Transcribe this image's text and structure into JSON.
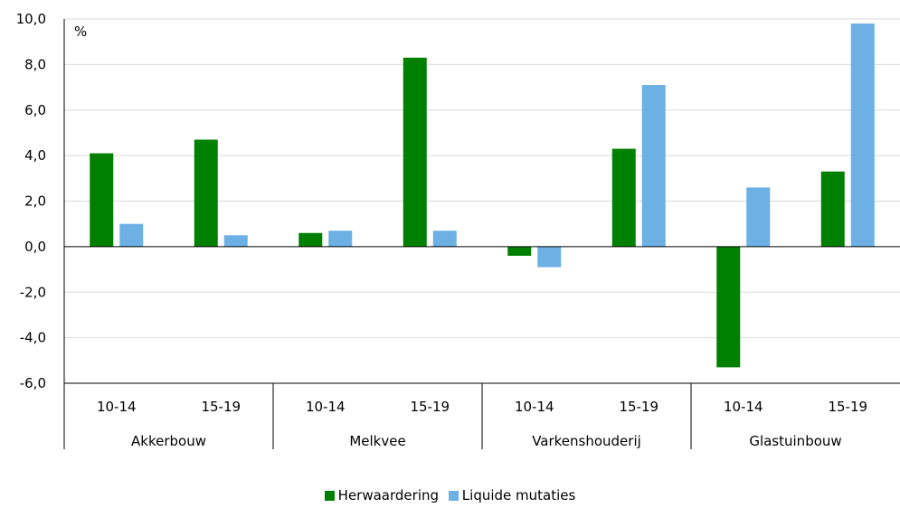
{
  "chart_data": {
    "type": "bar",
    "unit_label": "%",
    "groups": [
      "Akkerbouw",
      "Melkvee",
      "Varkenshouderij",
      "Glastuinbouw"
    ],
    "periods": [
      "10-14",
      "15-19"
    ],
    "categories": [
      "Akkerbouw 10-14",
      "Akkerbouw 15-19",
      "Melkvee 10-14",
      "Melkvee 15-19",
      "Varkenshouderij 10-14",
      "Varkenshouderij 15-19",
      "Glastuinbouw 10-14",
      "Glastuinbouw 15-19"
    ],
    "series": [
      {
        "name": "Herwaardering",
        "color": "#008000",
        "values": [
          4.1,
          4.7,
          0.6,
          8.3,
          -0.4,
          4.3,
          -5.3,
          3.3
        ]
      },
      {
        "name": "Liquide mutaties",
        "color": "#6cb0e4",
        "values": [
          1.0,
          0.5,
          0.7,
          0.7,
          -0.9,
          7.1,
          2.6,
          9.8
        ]
      }
    ],
    "ylim": [
      -6,
      10
    ],
    "yticks": [
      "-6,0",
      "-4,0",
      "-2,0",
      "0,0",
      "2,0",
      "4,0",
      "6,0",
      "8,0",
      "10,0"
    ],
    "grid": true,
    "legend_position": "bottom"
  }
}
